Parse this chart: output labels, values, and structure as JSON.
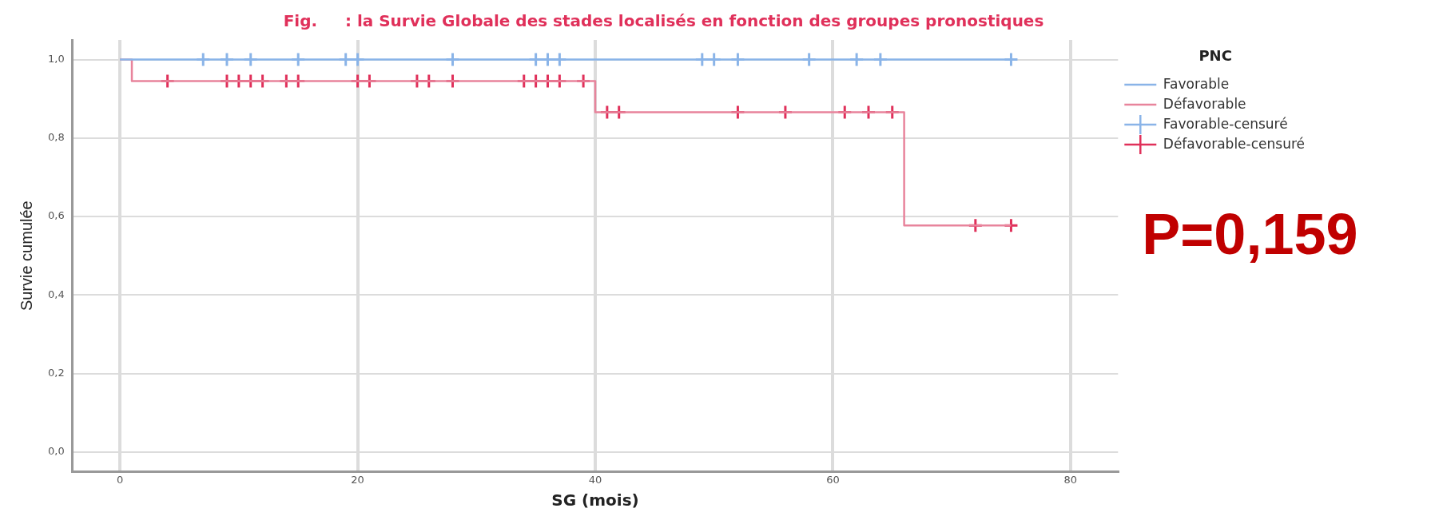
{
  "chart_data": {
    "type": "step",
    "title": "Fig.     : la Survie Globale des stades localisés en fonction des groupes pronostiques",
    "xlabel": "SG (mois)",
    "ylabel": "Survie cumulée",
    "legend_title": "PNC",
    "legend": "right",
    "grid": true,
    "xlim": [
      -4,
      84
    ],
    "xticks": [
      0,
      20,
      40,
      60,
      80
    ],
    "ylim": [
      -0.05,
      1.05
    ],
    "yticks": [
      {
        "value": 0,
        "label": "0,0"
      },
      {
        "value": 0.2,
        "label": "0,2"
      },
      {
        "value": 0.4,
        "label": "0,4"
      },
      {
        "value": 0.6,
        "label": "0,6"
      },
      {
        "value": 0.8,
        "label": "0,8"
      },
      {
        "value": 1,
        "label": "1,0"
      }
    ],
    "series": [
      {
        "name": "Favorable",
        "color": "#8ab4e8",
        "marker": "none",
        "x": [
          0,
          75
        ],
        "values": [
          1,
          1
        ]
      },
      {
        "name": "Défavorable",
        "color": "#e8849c",
        "marker": "none",
        "x": [
          0,
          1,
          40,
          66,
          75
        ],
        "values": [
          1,
          0.945,
          0.866,
          0.577,
          0.577
        ]
      },
      {
        "name": "Favorable-censuré",
        "type": "scatter",
        "color": "#8ab4e8",
        "marker": "cross",
        "x": [
          7,
          9,
          11,
          15,
          19,
          20,
          28,
          35,
          36,
          37,
          49,
          50,
          52,
          58,
          62,
          64,
          75
        ],
        "values": [
          1,
          1,
          1,
          1,
          1,
          1,
          1,
          1,
          1,
          1,
          1,
          1,
          1,
          1,
          1,
          1,
          1
        ]
      },
      {
        "name": "Défavorable-censuré",
        "type": "scatter",
        "color": "#e0305a",
        "marker": "cross",
        "x": [
          4,
          9,
          10,
          11,
          12,
          14,
          15,
          20,
          21,
          25,
          26,
          28,
          34,
          35,
          36,
          37,
          39,
          41,
          42,
          52,
          56,
          61,
          63,
          65,
          72,
          75
        ],
        "values": [
          0.945,
          0.945,
          0.945,
          0.945,
          0.945,
          0.945,
          0.945,
          0.945,
          0.945,
          0.945,
          0.945,
          0.945,
          0.945,
          0.945,
          0.945,
          0.945,
          0.945,
          0.866,
          0.866,
          0.866,
          0.866,
          0.866,
          0.866,
          0.866,
          0.577,
          0.577
        ]
      }
    ],
    "annotations": [
      "P=0,159"
    ]
  }
}
